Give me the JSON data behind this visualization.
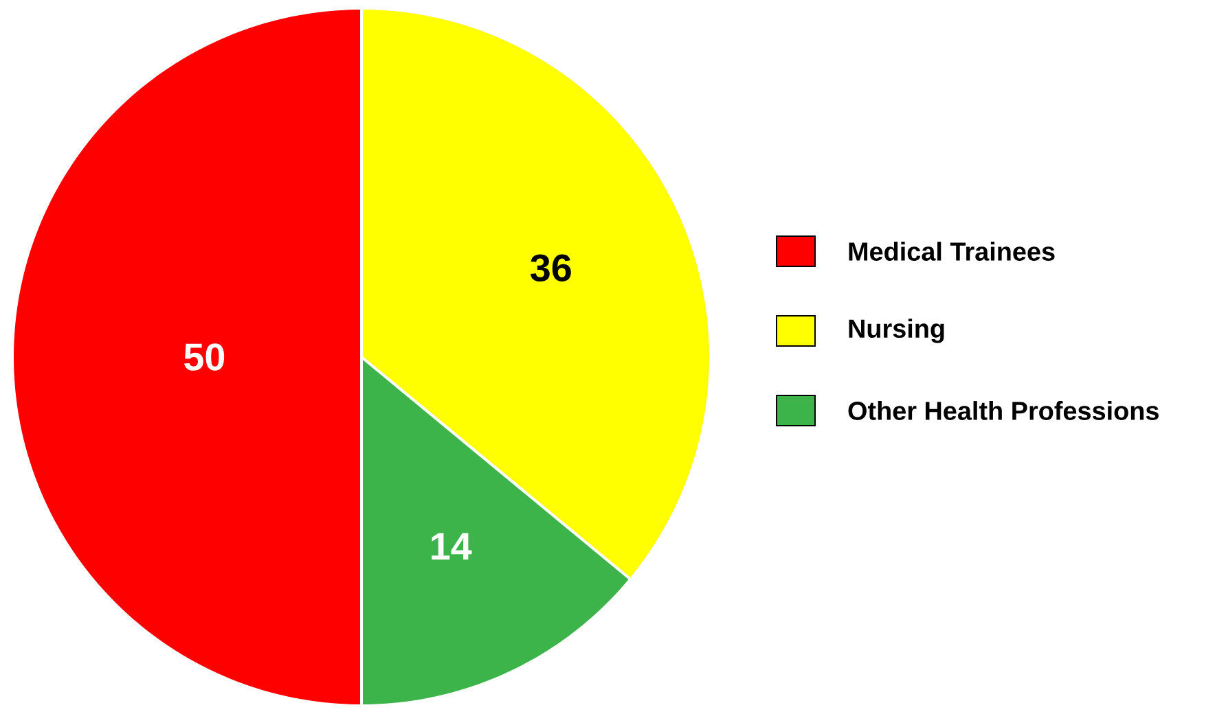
{
  "chart_data": {
    "type": "pie",
    "categories": [
      "Medical Trainees",
      "Nursing",
      "Other Health Professions"
    ],
    "values": [
      50,
      36,
      14
    ],
    "colors": [
      "#ff0000",
      "#ffff00",
      "#3cb44a"
    ],
    "data_labels": true,
    "legend": "right"
  }
}
